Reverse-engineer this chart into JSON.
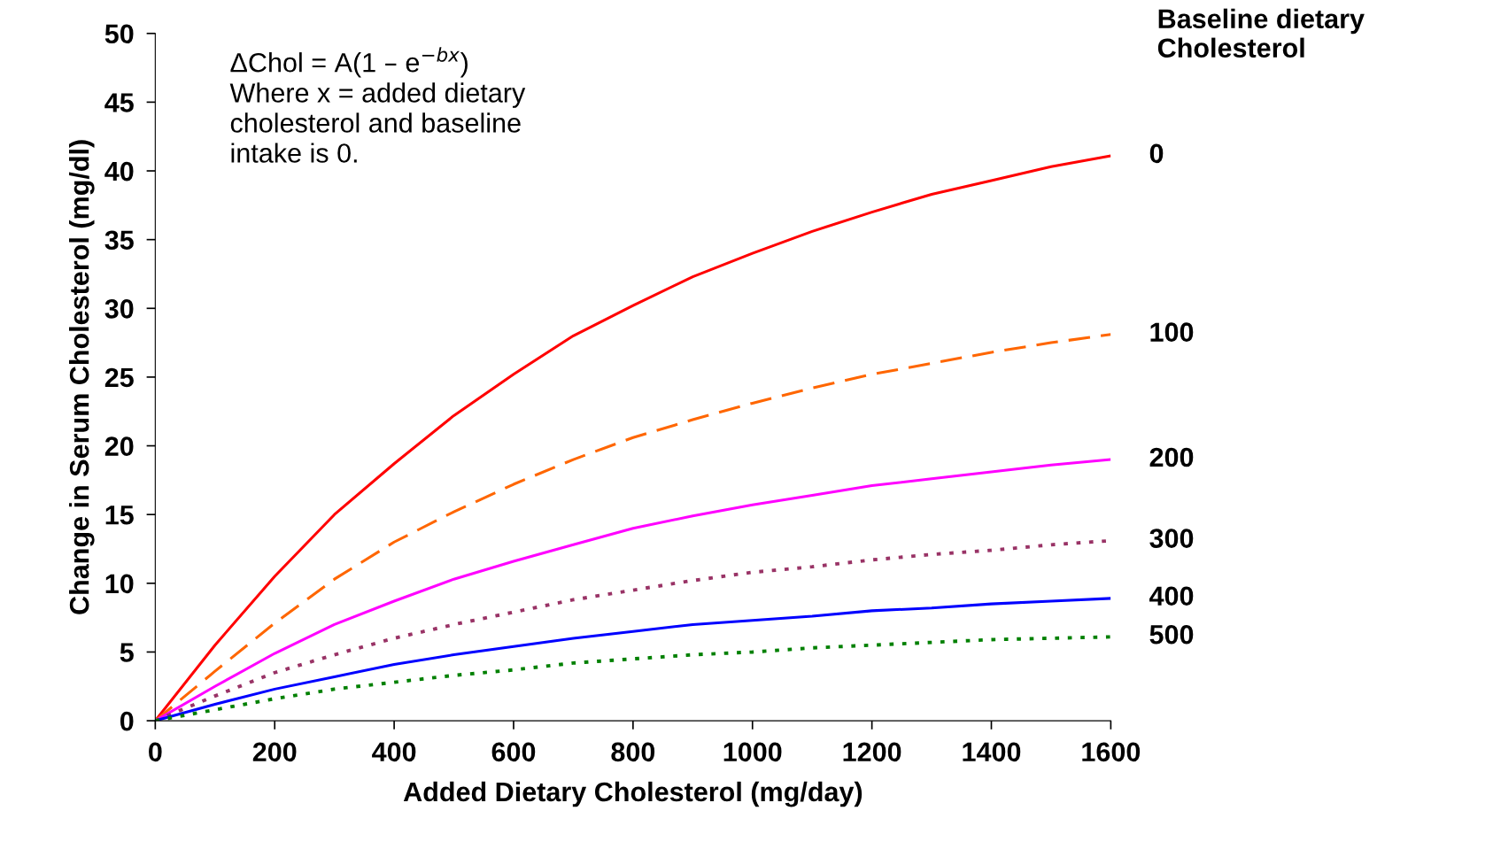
{
  "chart_data": {
    "type": "line",
    "xlabel": "Added Dietary Cholesterol (mg/day)",
    "ylabel": "Change in Serum Cholesterol (mg/dl)",
    "legend_title": "Baseline dietary\nCholesterol",
    "annotations": [
      "ΔChol = A(1 – e$^{−bx}$)\nWhere x = added dietary\ncholesterol and baseline\nintake is 0."
    ],
    "x": [
      0,
      100,
      200,
      300,
      400,
      500,
      600,
      700,
      800,
      900,
      1000,
      1100,
      1200,
      1300,
      1400,
      1500,
      1600
    ],
    "series": [
      {
        "name": "0",
        "color": "#ff0000",
        "line_style": "solid",
        "values": [
          0,
          5.5,
          10.5,
          15,
          18.7,
          22.2,
          25.2,
          28,
          30.2,
          32.3,
          34,
          35.6,
          37,
          38.3,
          39.3,
          40.3,
          41.1
        ]
      },
      {
        "name": "100",
        "color": "#ff6600",
        "line_style": "dashed",
        "values": [
          0,
          3.6,
          7.1,
          10.3,
          13,
          15.2,
          17.2,
          19,
          20.6,
          21.9,
          23.1,
          24.2,
          25.2,
          26,
          26.8,
          27.5,
          28.1
        ]
      },
      {
        "name": "200",
        "color": "#ff00ff",
        "line_style": "solid",
        "values": [
          0,
          2.5,
          4.9,
          7,
          8.7,
          10.3,
          11.6,
          12.8,
          14,
          14.9,
          15.7,
          16.4,
          17.1,
          17.6,
          18.1,
          18.6,
          19
        ]
      },
      {
        "name": "300",
        "color": "#993366",
        "line_style": "dotted",
        "values": [
          0,
          1.8,
          3.5,
          4.8,
          6,
          7,
          7.9,
          8.8,
          9.5,
          10.2,
          10.8,
          11.2,
          11.7,
          12.1,
          12.4,
          12.8,
          13.1
        ]
      },
      {
        "name": "400",
        "color": "#0000ff",
        "line_style": "solid",
        "values": [
          0,
          1.2,
          2.3,
          3.2,
          4.1,
          4.8,
          5.4,
          6,
          6.5,
          7,
          7.3,
          7.6,
          8,
          8.2,
          8.5,
          8.7,
          8.9
        ]
      },
      {
        "name": "500",
        "color": "#008000",
        "line_style": "dotted",
        "values": [
          0,
          0.8,
          1.6,
          2.3,
          2.8,
          3.3,
          3.7,
          4.2,
          4.5,
          4.8,
          5,
          5.3,
          5.5,
          5.7,
          5.9,
          6,
          6.1
        ]
      }
    ],
    "xlim": [
      0,
      1600
    ],
    "xticks": [
      0,
      200,
      400,
      600,
      800,
      1000,
      1200,
      1400,
      1600
    ],
    "ylim": [
      0,
      50
    ],
    "yticks": [
      0,
      5,
      10,
      15,
      20,
      25,
      30,
      35,
      40,
      45,
      50
    ],
    "grid": false
  }
}
